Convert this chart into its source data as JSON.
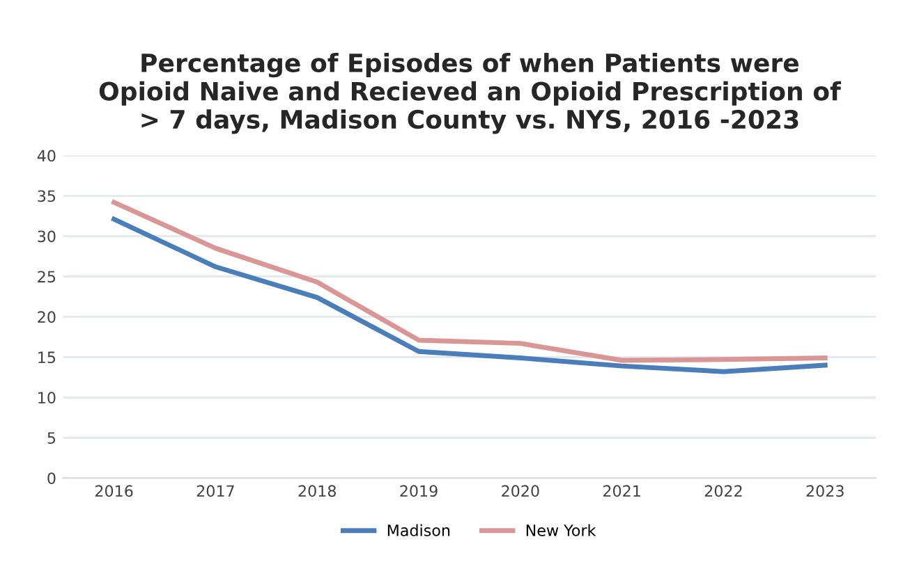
{
  "chart_data": {
    "type": "line",
    "title": "Percentage of Episodes of when Patients were\nOpioid Naive and Recieved an Opioid Prescription of\n> 7 days, Madison County vs. NYS, 2016 -2023",
    "categories": [
      "2016",
      "2017",
      "2018",
      "2019",
      "2020",
      "2021",
      "2022",
      "2023"
    ],
    "series": [
      {
        "name": "Madison",
        "color": "#4a7ebb",
        "values": [
          32.1,
          26.2,
          22.4,
          15.7,
          14.9,
          13.9,
          13.2,
          14.0
        ]
      },
      {
        "name": "New York",
        "color": "#d99694",
        "values": [
          34.2,
          28.5,
          24.3,
          17.1,
          16.7,
          14.6,
          14.7,
          14.9
        ]
      }
    ],
    "ylim": [
      0,
      40
    ],
    "yticks": [
      0,
      5,
      10,
      15,
      20,
      25,
      30,
      35,
      40
    ],
    "grid": "y",
    "legend": "bottom",
    "marker": "none",
    "line_style": "solid"
  }
}
